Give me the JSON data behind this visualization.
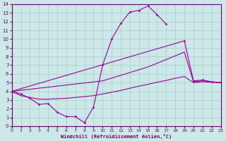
{
  "background_color": "#cce8e8",
  "grid_color": "#aacccc",
  "line_color": "#990099",
  "xlabel": "Windchill (Refroidissement éolien,°C)",
  "x_min": 0,
  "x_max": 23,
  "y_min": 0,
  "y_max": 14,
  "line1_x": [
    0,
    1,
    2,
    3,
    4,
    5,
    6,
    7,
    8,
    9,
    10,
    11,
    12,
    13,
    14,
    15,
    16,
    17
  ],
  "line1_y": [
    4.0,
    3.7,
    3.2,
    2.5,
    2.6,
    1.6,
    1.1,
    1.1,
    0.4,
    2.2,
    7.0,
    10.0,
    11.8,
    13.1,
    13.3,
    13.8,
    12.8,
    11.7
  ],
  "line2_x": [
    0,
    19,
    20,
    21,
    22,
    23
  ],
  "line2_y": [
    4.0,
    9.8,
    5.2,
    5.3,
    5.1,
    5.0
  ],
  "line3_x": [
    0,
    10,
    15,
    19,
    20,
    21,
    22,
    23
  ],
  "line3_y": [
    4.0,
    5.2,
    6.8,
    8.5,
    5.1,
    5.2,
    5.05,
    5.0
  ],
  "line4_x": [
    0,
    1,
    2,
    3,
    4,
    5,
    6,
    7,
    8,
    9,
    10,
    11,
    12,
    13,
    14,
    15,
    16,
    17,
    18,
    19,
    20,
    21,
    22,
    23
  ],
  "line4_y": [
    4.0,
    3.5,
    3.3,
    3.1,
    3.1,
    3.15,
    3.2,
    3.3,
    3.4,
    3.5,
    3.7,
    3.9,
    4.1,
    4.35,
    4.6,
    4.8,
    5.05,
    5.25,
    5.5,
    5.7,
    5.0,
    5.1,
    5.05,
    5.0
  ]
}
